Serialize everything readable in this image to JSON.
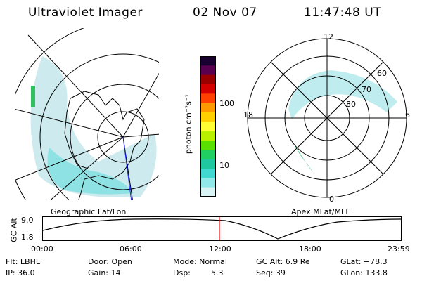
{
  "header": {
    "instrument": "Ultraviolet Imager",
    "date": "02 Nov 07",
    "time": "11:47:48 UT"
  },
  "panels": {
    "geo_label": "Geographic Lat/Lon",
    "apex_label": "Apex MLat/MLT"
  },
  "polar_plot": {
    "mlt_labels": {
      "top": "12",
      "right": "6",
      "bottom": "0",
      "left": "18"
    },
    "lat_labels": [
      "60",
      "70",
      "80"
    ]
  },
  "colorbar": {
    "unit_label": "photon cm⁻²s⁻¹",
    "ticks": [
      "100",
      "10"
    ],
    "colors": [
      "#1a0030",
      "#5a0050",
      "#9b0000",
      "#d40000",
      "#ff4000",
      "#ff9900",
      "#ffd000",
      "#ffff33",
      "#b8f000",
      "#5ae000",
      "#20d060",
      "#20c8a0",
      "#40d8d0",
      "#90e8e8",
      "#d8f4f4"
    ]
  },
  "altitude_plot": {
    "ylabel": "GC Alt",
    "ymax": "9.0",
    "ymin": "1.8",
    "x_ticks": [
      "00:00",
      "06:00",
      "12:00",
      "18:00",
      "23:59"
    ],
    "current_time_marker_color": "#ff0000"
  },
  "info": {
    "filter": "Flt: LBHL",
    "ip": "IP: 36.0",
    "door": "Door: Open",
    "gain": "Gain: 14",
    "mode": "Mode: Normal",
    "dsp_label": "Dsp:",
    "dsp_value": "5.3",
    "gc_alt": "GC Alt: 6.9 Re",
    "seq": "Seq: 39",
    "glat": "GLat: −78.3",
    "glon": "GLon: 133.8"
  }
}
